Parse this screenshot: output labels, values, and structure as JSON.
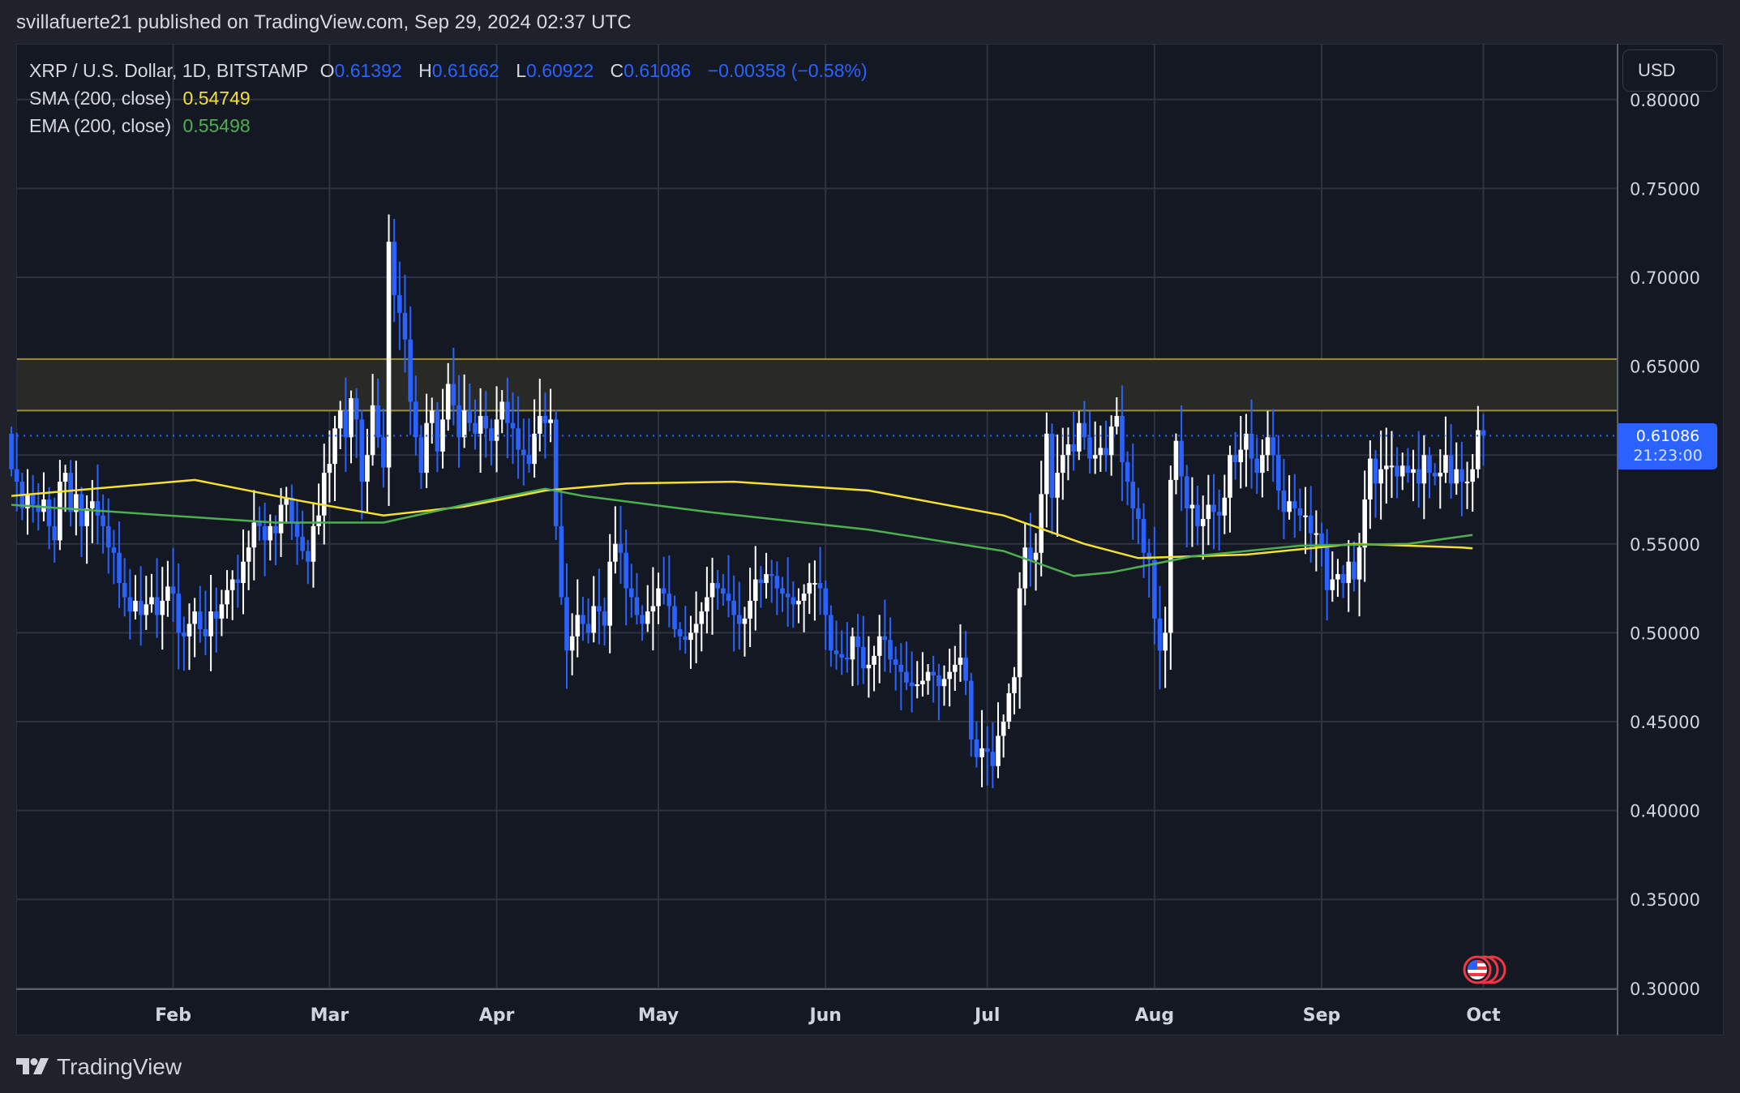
{
  "header": {
    "published_line": "svillafuerte21 published on TradingView.com, Sep 29, 2024 02:37 UTC"
  },
  "legend": {
    "symbol": "XRP / U.S. Dollar, 1D, BITSTAMP",
    "open_label": "O",
    "open": "0.61392",
    "high_label": "H",
    "high": "0.61662",
    "low_label": "L",
    "low": "0.60922",
    "close_label": "C",
    "close": "0.61086",
    "change": "−0.00358 (−0.58%)",
    "sma_label": "SMA (200, close)",
    "sma_value": "0.54749",
    "ema_label": "EMA (200, close)",
    "ema_value": "0.55498"
  },
  "price_axis": {
    "currency_button": "USD",
    "last_price": "0.61086",
    "countdown": "21:23:00",
    "ticks": [
      "0.80000",
      "0.75000",
      "0.70000",
      "0.65000",
      "0.60000",
      "0.55000",
      "0.50000",
      "0.45000",
      "0.40000",
      "0.35000",
      "0.30000"
    ]
  },
  "time_axis": {
    "ticks": [
      "Feb",
      "Mar",
      "Apr",
      "May",
      "Jun",
      "Jul",
      "Aug",
      "Sep",
      "Oct"
    ]
  },
  "footer": {
    "brand": "TradingView"
  },
  "colors": {
    "up": "#ffffff",
    "down": "#2962ff",
    "sma": "#f5e030",
    "ema": "#4caf50",
    "zone_fill": "#2a2a27",
    "zone_line": "#9c8f35",
    "grid": "#2f3340",
    "bg": "#141823"
  },
  "chart_data": {
    "type": "candlestick",
    "title": "XRP / U.S. Dollar, 1D, BITSTAMP",
    "xlabel": "",
    "ylabel": "USD",
    "ylim": [
      0.3,
      0.8
    ],
    "x_range": [
      "2024-01-02",
      "2024-09-29"
    ],
    "grid": true,
    "x_ticks": [
      "Feb",
      "Mar",
      "Apr",
      "May",
      "Jun",
      "Jul",
      "Aug",
      "Sep",
      "Oct"
    ],
    "y_ticks": [
      0.3,
      0.35,
      0.4,
      0.45,
      0.5,
      0.55,
      0.6,
      0.65,
      0.7,
      0.75,
      0.8
    ],
    "resistance_zone": {
      "top": 0.654,
      "bottom": 0.625
    },
    "last_price": 0.61086,
    "closes_start_day_of_year": 1,
    "closes": [
      0.592,
      0.585,
      0.57,
      0.578,
      0.572,
      0.568,
      0.575,
      0.56,
      0.552,
      0.585,
      0.59,
      0.568,
      0.578,
      0.56,
      0.57,
      0.574,
      0.566,
      0.56,
      0.548,
      0.545,
      0.528,
      0.52,
      0.512,
      0.518,
      0.51,
      0.516,
      0.52,
      0.51,
      0.518,
      0.526,
      0.522,
      0.5,
      0.498,
      0.505,
      0.512,
      0.502,
      0.498,
      0.512,
      0.508,
      0.516,
      0.524,
      0.53,
      0.528,
      0.54,
      0.548,
      0.562,
      0.56,
      0.552,
      0.56,
      0.556,
      0.572,
      0.576,
      0.562,
      0.554,
      0.546,
      0.54,
      0.56,
      0.566,
      0.59,
      0.595,
      0.615,
      0.625,
      0.61,
      0.632,
      0.62,
      0.585,
      0.6,
      0.628,
      0.61,
      0.593,
      0.72,
      0.69,
      0.68,
      0.665,
      0.63,
      0.61,
      0.59,
      0.618,
      0.625,
      0.602,
      0.62,
      0.64,
      0.628,
      0.61,
      0.625,
      0.618,
      0.612,
      0.622,
      0.615,
      0.608,
      0.62,
      0.63,
      0.618,
      0.615,
      0.603,
      0.6,
      0.595,
      0.612,
      0.622,
      0.618,
      0.62,
      0.56,
      0.52,
      0.49,
      0.498,
      0.51,
      0.505,
      0.5,
      0.515,
      0.512,
      0.504,
      0.54,
      0.55,
      0.545,
      0.525,
      0.52,
      0.51,
      0.505,
      0.512,
      0.515,
      0.525,
      0.522,
      0.515,
      0.502,
      0.498,
      0.496,
      0.5,
      0.505,
      0.512,
      0.52,
      0.528,
      0.525,
      0.522,
      0.518,
      0.51,
      0.505,
      0.508,
      0.518,
      0.53,
      0.528,
      0.533,
      0.532,
      0.525,
      0.522,
      0.52,
      0.516,
      0.518,
      0.522,
      0.528,
      0.528,
      0.525,
      0.51,
      0.49,
      0.488,
      0.486,
      0.485,
      0.498,
      0.492,
      0.48,
      0.482,
      0.487,
      0.498,
      0.496,
      0.485,
      0.482,
      0.478,
      0.472,
      0.47,
      0.471,
      0.473,
      0.478,
      0.476,
      0.47,
      0.474,
      0.478,
      0.482,
      0.486,
      0.473,
      0.44,
      0.43,
      0.435,
      0.433,
      0.425,
      0.442,
      0.45,
      0.466,
      0.475,
      0.525,
      0.548,
      0.541,
      0.545,
      0.578,
      0.612,
      0.576,
      0.59,
      0.6,
      0.606,
      0.602,
      0.618,
      0.61,
      0.598,
      0.6,
      0.604,
      0.6,
      0.616,
      0.622,
      0.596,
      0.585,
      0.57,
      0.564,
      0.545,
      0.541,
      0.508,
      0.49,
      0.5,
      0.586,
      0.608,
      0.588,
      0.57,
      0.572,
      0.56,
      0.564,
      0.572,
      0.568,
      0.566,
      0.576,
      0.6,
      0.596,
      0.603,
      0.612,
      0.598,
      0.59,
      0.6,
      0.61,
      0.6,
      0.58,
      0.568,
      0.574,
      0.57,
      0.566,
      0.566,
      0.556,
      0.556,
      0.548,
      0.524,
      0.53,
      0.533,
      0.528,
      0.54,
      0.53,
      0.548,
      0.575,
      0.598,
      0.584,
      0.592,
      0.594,
      0.594,
      0.588,
      0.594,
      0.59,
      0.592,
      0.584,
      0.6,
      0.59,
      0.588,
      0.59,
      0.6,
      0.584,
      0.592,
      0.585,
      0.585,
      0.592,
      0.614,
      0.611
    ],
    "series": [
      {
        "name": "SMA (200, close)",
        "color": "#f5e030",
        "last": 0.54749,
        "points": [
          [
            1,
            0.577
          ],
          [
            35,
            0.586
          ],
          [
            55,
            0.574
          ],
          [
            70,
            0.566
          ],
          [
            85,
            0.571
          ],
          [
            100,
            0.58
          ],
          [
            115,
            0.584
          ],
          [
            135,
            0.585
          ],
          [
            160,
            0.58
          ],
          [
            185,
            0.566
          ],
          [
            200,
            0.55
          ],
          [
            210,
            0.542
          ],
          [
            230,
            0.544
          ],
          [
            250,
            0.55
          ],
          [
            270,
            0.548
          ],
          [
            272,
            0.5475
          ]
        ]
      },
      {
        "name": "EMA (200, close)",
        "color": "#4caf50",
        "last": 0.55498,
        "points": [
          [
            1,
            0.572
          ],
          [
            30,
            0.566
          ],
          [
            50,
            0.562
          ],
          [
            70,
            0.562
          ],
          [
            85,
            0.572
          ],
          [
            100,
            0.581
          ],
          [
            107,
            0.577
          ],
          [
            130,
            0.568
          ],
          [
            160,
            0.558
          ],
          [
            185,
            0.546
          ],
          [
            198,
            0.532
          ],
          [
            205,
            0.534
          ],
          [
            220,
            0.543
          ],
          [
            240,
            0.549
          ],
          [
            260,
            0.55
          ],
          [
            272,
            0.555
          ]
        ]
      }
    ]
  }
}
